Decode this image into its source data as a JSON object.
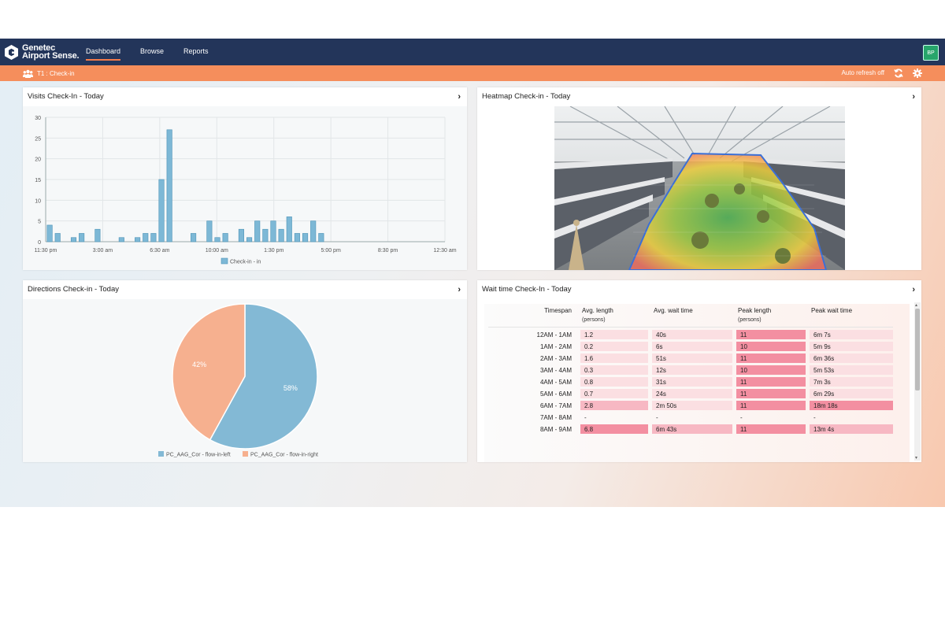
{
  "app": {
    "logo_line1": "Genetec",
    "logo_line2": "Airport Sense.",
    "nav": [
      {
        "label": "Dashboard",
        "active": true
      },
      {
        "label": "Browse",
        "active": false
      },
      {
        "label": "Reports",
        "active": false
      }
    ],
    "avatar": "BP",
    "breadcrumb": "T1 : Check-in",
    "auto_refresh": "Auto refresh off"
  },
  "panels": {
    "visits_title": "Visits Check-In - Today",
    "heatmap_title": "Heatmap Check-in - Today",
    "directions_title": "Directions Check-in - Today",
    "waittime_title": "Wait time Check-In - Today"
  },
  "chart_data": [
    {
      "type": "bar",
      "title": "Visits Check-In - Today",
      "ylim": [
        0,
        30
      ],
      "yticks": [
        0,
        5,
        10,
        15,
        20,
        25,
        30
      ],
      "xticks": [
        "11:30 pm",
        "3:00 am",
        "6:30 am",
        "10:00 am",
        "1:30 pm",
        "5:00 pm",
        "8:30 pm",
        "12:30 am"
      ],
      "grid": true,
      "legend": "bottom",
      "series": [
        {
          "name": "Check-in - in",
          "color": "#7db8d6",
          "values": [
            4,
            2,
            0,
            1,
            2,
            0,
            3,
            0,
            0,
            1,
            0,
            1,
            2,
            2,
            15,
            27,
            0,
            0,
            2,
            0,
            5,
            1,
            2,
            0,
            3,
            1,
            5,
            3,
            5,
            3,
            6,
            2,
            2,
            5,
            2,
            0,
            0,
            0,
            0,
            0,
            0,
            0,
            0,
            0,
            0,
            0,
            0,
            0,
            0,
            0
          ]
        }
      ]
    },
    {
      "type": "pie",
      "title": "Directions Check-in - Today",
      "legend": "bottom",
      "slices": [
        {
          "name": "PC_AAG_Cor - flow-in-left",
          "value": 58,
          "label": "58%",
          "color": "#83b9d5"
        },
        {
          "name": "PC_AAG_Cor - flow-in-right",
          "value": 42,
          "label": "42%",
          "color": "#f6b08f"
        }
      ]
    }
  ],
  "waittime": {
    "headers": {
      "timespan": "Timespan",
      "avg_length": "Avg. length",
      "avg_length_sub": "(persons)",
      "avg_wait": "Avg. wait time",
      "peak_length": "Peak length",
      "peak_length_sub": "(persons)",
      "peak_wait": "Peak wait time"
    },
    "rows": [
      {
        "timespan": "12AM - 1AM",
        "avg_length": "1.2",
        "avg_wait": "40s",
        "peak_length": "11",
        "peak_wait": "6m 7s",
        "levels": [
          1,
          1,
          3,
          1
        ]
      },
      {
        "timespan": "1AM - 2AM",
        "avg_length": "0.2",
        "avg_wait": "6s",
        "peak_length": "10",
        "peak_wait": "5m 9s",
        "levels": [
          1,
          1,
          3,
          1
        ]
      },
      {
        "timespan": "2AM - 3AM",
        "avg_length": "1.6",
        "avg_wait": "51s",
        "peak_length": "11",
        "peak_wait": "6m 36s",
        "levels": [
          1,
          1,
          3,
          1
        ]
      },
      {
        "timespan": "3AM - 4AM",
        "avg_length": "0.3",
        "avg_wait": "12s",
        "peak_length": "10",
        "peak_wait": "5m 53s",
        "levels": [
          1,
          1,
          3,
          1
        ]
      },
      {
        "timespan": "4AM - 5AM",
        "avg_length": "0.8",
        "avg_wait": "31s",
        "peak_length": "11",
        "peak_wait": "7m 3s",
        "levels": [
          1,
          1,
          3,
          1
        ]
      },
      {
        "timespan": "5AM - 6AM",
        "avg_length": "0.7",
        "avg_wait": "24s",
        "peak_length": "11",
        "peak_wait": "6m 29s",
        "levels": [
          1,
          1,
          3,
          1
        ]
      },
      {
        "timespan": "6AM - 7AM",
        "avg_length": "2.8",
        "avg_wait": "2m 50s",
        "peak_length": "11",
        "peak_wait": "18m 18s",
        "levels": [
          2,
          1,
          3,
          3
        ]
      },
      {
        "timespan": "7AM - 8AM",
        "avg_length": "-",
        "avg_wait": "-",
        "peak_length": "-",
        "peak_wait": "-",
        "levels": [
          0,
          0,
          0,
          0
        ]
      },
      {
        "timespan": "8AM - 9AM",
        "avg_length": "6.8",
        "avg_wait": "6m 43s",
        "peak_length": "11",
        "peak_wait": "13m 4s",
        "levels": [
          3,
          2,
          3,
          2
        ]
      }
    ],
    "level_colors": [
      "transparent",
      "#fbdfe2",
      "#f7b8c3",
      "#f38fa1"
    ]
  },
  "icons": {
    "logo": "genetec-logo-icon",
    "breadcrumb": "people-group-icon",
    "refresh": "refresh-icon",
    "settings": "gear-icon",
    "panel_arrow": "chevron-right-icon"
  }
}
